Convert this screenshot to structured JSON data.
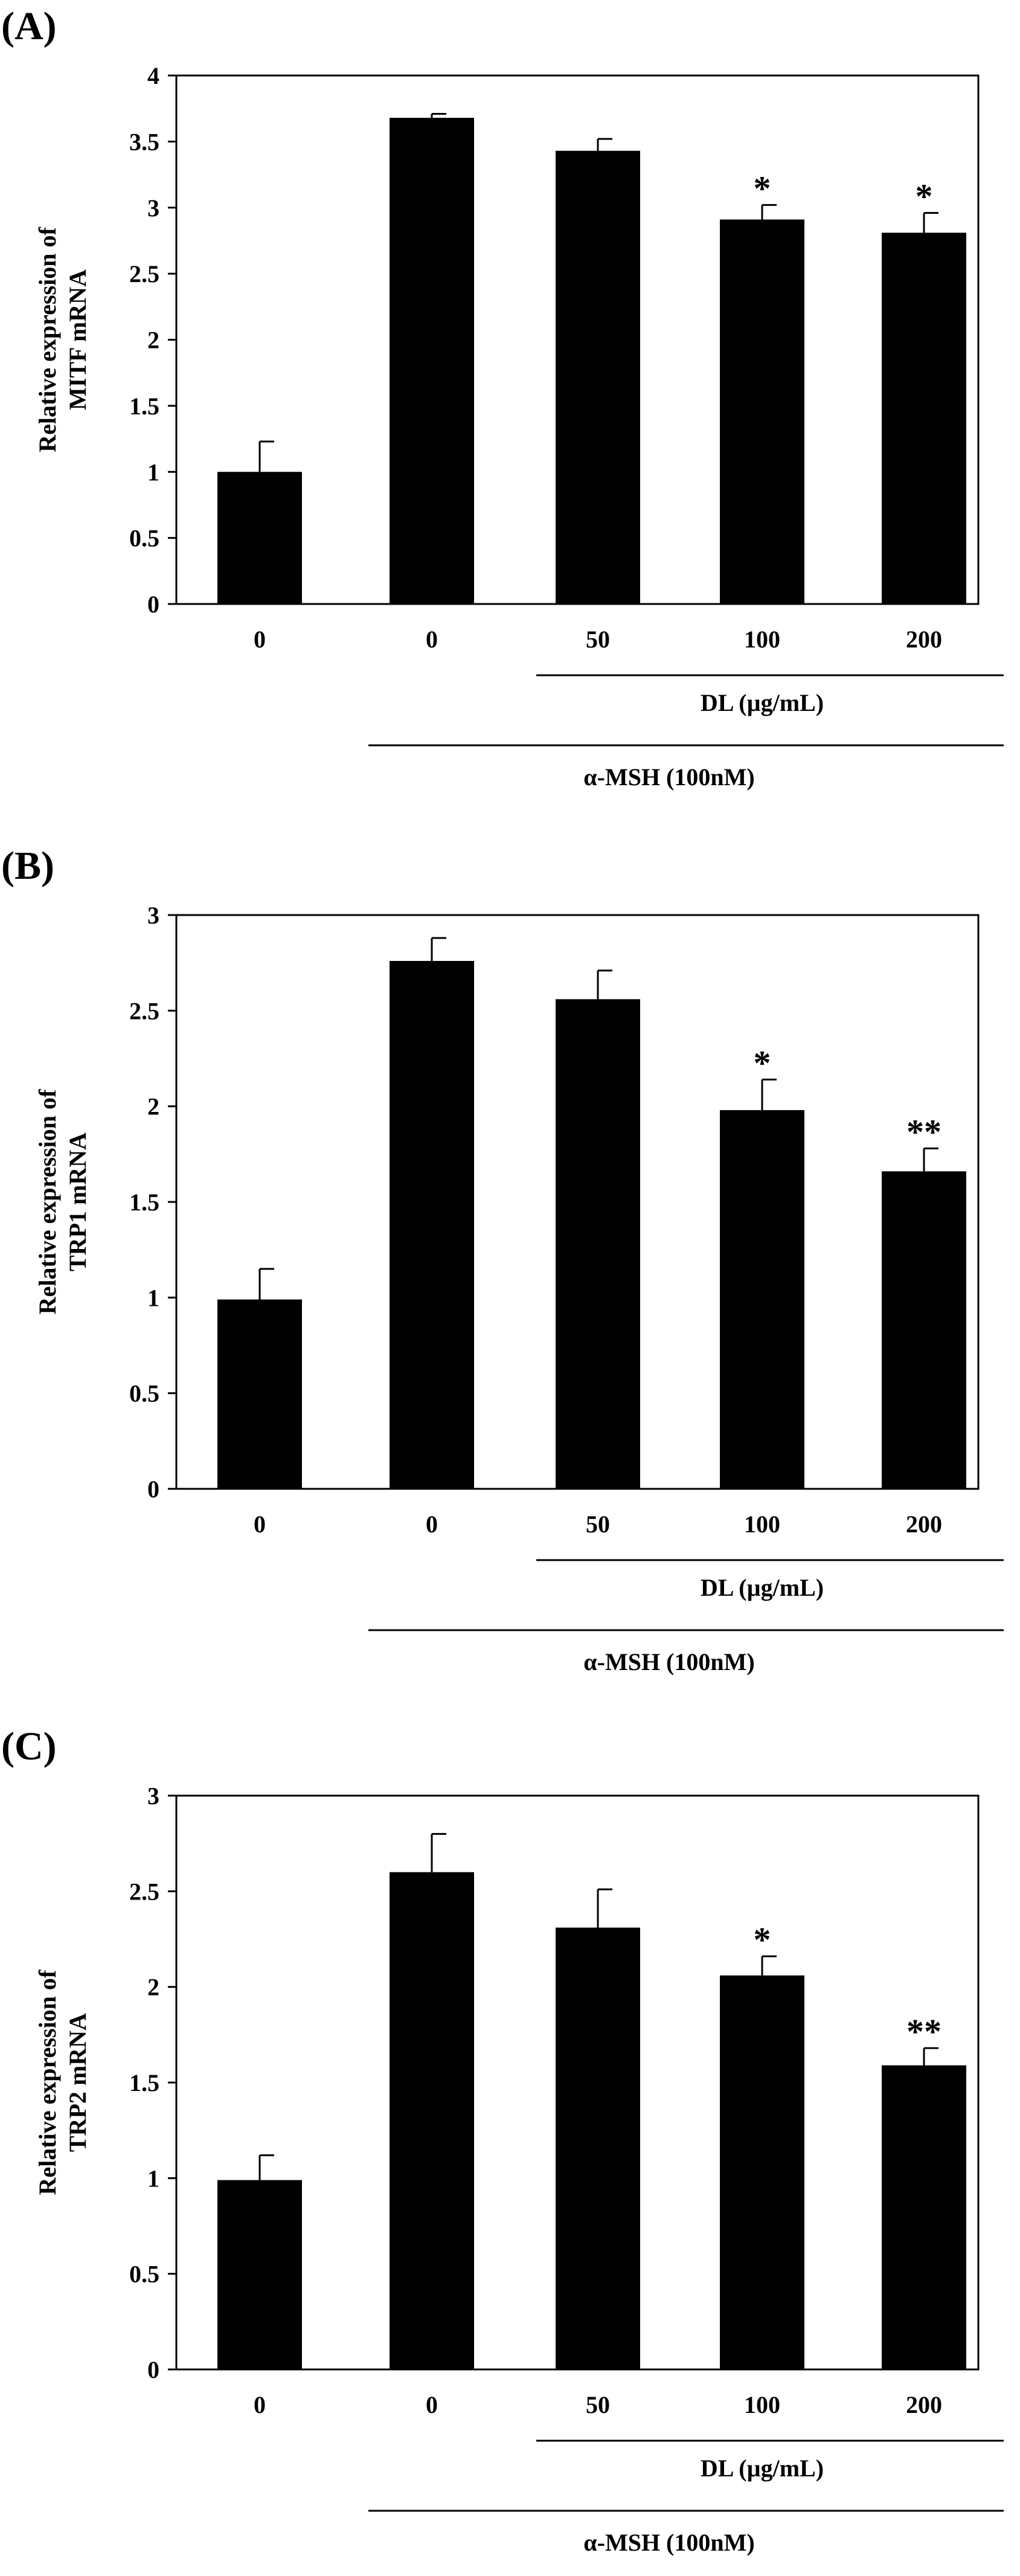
{
  "chart_data": [
    {
      "type": "bar",
      "panel": "(A)",
      "ylabel_lines": [
        "Relative expression of",
        "MITF mRNA"
      ],
      "categories": [
        "0",
        "0",
        "50",
        "100",
        "200"
      ],
      "values": [
        1.0,
        3.68,
        3.43,
        2.91,
        2.81
      ],
      "errors": [
        0.23,
        0.03,
        0.09,
        0.11,
        0.15
      ],
      "significance": [
        "",
        "",
        "",
        "*",
        "*"
      ],
      "ylim": [
        0,
        4
      ],
      "yticks": [
        "0",
        "0.5",
        "1",
        "1.5",
        "2",
        "2.5",
        "3",
        "3.5",
        "4"
      ],
      "bar_color": "#000000",
      "grid": false,
      "treatment_labels": {
        "dl": "DL (µg/mL)",
        "msh": "α-MSH (100nM)"
      }
    },
    {
      "type": "bar",
      "panel": "(B)",
      "ylabel_lines": [
        "Relative expression of",
        "TRP1 mRNA"
      ],
      "categories": [
        "0",
        "0",
        "50",
        "100",
        "200"
      ],
      "values": [
        0.99,
        2.76,
        2.56,
        1.98,
        1.66
      ],
      "errors": [
        0.16,
        0.12,
        0.15,
        0.16,
        0.12
      ],
      "significance": [
        "",
        "",
        "",
        "*",
        "**"
      ],
      "ylim": [
        0,
        3
      ],
      "yticks": [
        "0",
        "0.5",
        "1",
        "1.5",
        "2",
        "2.5",
        "3"
      ],
      "bar_color": "#000000",
      "grid": false,
      "treatment_labels": {
        "dl": "DL (µg/mL)",
        "msh": "α-MSH (100nM)"
      }
    },
    {
      "type": "bar",
      "panel": "(C)",
      "ylabel_lines": [
        "Relative expression of",
        "TRP2 mRNA"
      ],
      "categories": [
        "0",
        "0",
        "50",
        "100",
        "200"
      ],
      "values": [
        0.99,
        2.6,
        2.31,
        2.06,
        1.59
      ],
      "errors": [
        0.13,
        0.2,
        0.2,
        0.1,
        0.09
      ],
      "significance": [
        "",
        "",
        "",
        "*",
        "**"
      ],
      "ylim": [
        0,
        3
      ],
      "yticks": [
        "0",
        "0.5",
        "1",
        "1.5",
        "2",
        "2.5",
        "3"
      ],
      "bar_color": "#000000",
      "grid": false,
      "treatment_labels": {
        "dl": "DL (µg/mL)",
        "msh": "α-MSH (100nM)"
      }
    }
  ]
}
